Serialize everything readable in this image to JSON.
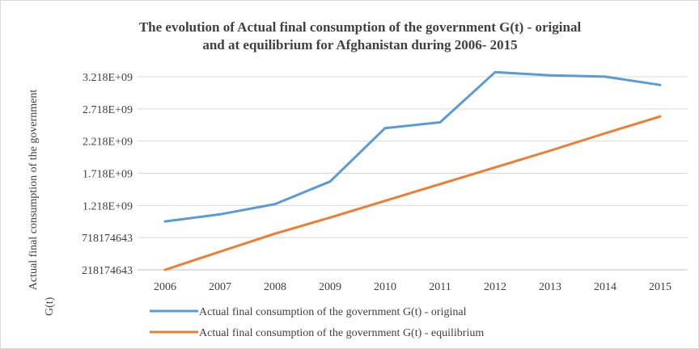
{
  "chart_data": {
    "type": "line",
    "title": "The evolution of Actual final consumption of the government G(t) - original and at equilibrium for Afghanistan during 2006- 2015",
    "title_lines": [
      "The evolution of Actual final consumption of the government G(t) - original",
      "and at equilibrium for Afghanistan during 2006- 2015"
    ],
    "xlabel": "",
    "ylabel": "Actual final consumption of the government G(t)",
    "ylabel_lines": [
      "Actual final consumption of the government",
      "G(t)"
    ],
    "categories": [
      "2006",
      "2007",
      "2008",
      "2009",
      "2010",
      "2011",
      "2012",
      "2013",
      "2014",
      "2015"
    ],
    "y_ticks": [
      218174643,
      718174643,
      1218174643,
      1718174643,
      2218174643,
      2718174643,
      3218174643
    ],
    "y_tick_labels": [
      "218174643",
      "718174643",
      "1.218E+09",
      "1.718E+09",
      "2.218E+09",
      "2.718E+09",
      "3.218E+09"
    ],
    "ylim": [
      218174643,
      3218174643
    ],
    "grid": true,
    "legend_position": "bottom",
    "series": [
      {
        "name": "Actual final consumption of the government G(t) - original",
        "color": "#5b9bd5",
        "values": [
          970000000,
          1080000000,
          1240000000,
          1590000000,
          2420000000,
          2510000000,
          3290000000,
          3240000000,
          3220000000,
          3090000000
        ]
      },
      {
        "name": "Actual final consumption of the government G(t) - equilibrium",
        "color": "#ed7d31",
        "values": [
          218174643,
          500000000,
          780000000,
          1030000000,
          1290000000,
          1550000000,
          1810000000,
          2070000000,
          2340000000,
          2600000000
        ]
      }
    ]
  }
}
